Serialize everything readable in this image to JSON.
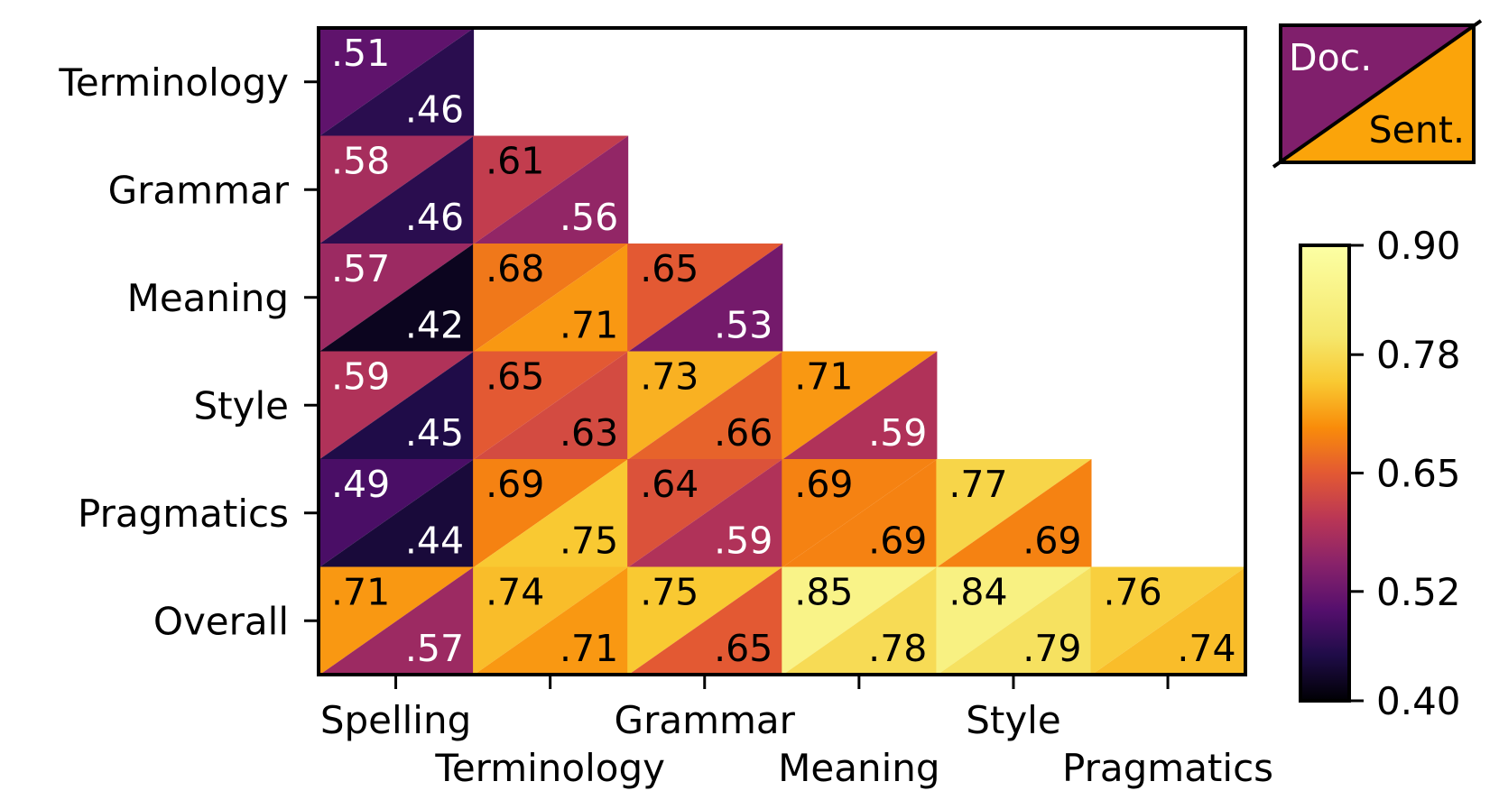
{
  "chart_data": {
    "type": "heatmap",
    "rows": [
      "Terminology",
      "Grammar",
      "Meaning",
      "Style",
      "Pragmatics",
      "Overall"
    ],
    "columns": [
      "Spelling",
      "Terminology",
      "Grammar",
      "Meaning",
      "Style",
      "Pragmatics"
    ],
    "doc_values": [
      [
        0.51,
        null,
        null,
        null,
        null,
        null
      ],
      [
        0.58,
        0.61,
        null,
        null,
        null,
        null
      ],
      [
        0.57,
        0.68,
        0.65,
        null,
        null,
        null
      ],
      [
        0.59,
        0.65,
        0.73,
        0.71,
        null,
        null
      ],
      [
        0.49,
        0.69,
        0.64,
        0.69,
        0.77,
        null
      ],
      [
        0.71,
        0.74,
        0.75,
        0.85,
        0.84,
        0.76
      ]
    ],
    "sent_values": [
      [
        0.46,
        null,
        null,
        null,
        null,
        null
      ],
      [
        0.46,
        0.56,
        null,
        null,
        null,
        null
      ],
      [
        0.42,
        0.71,
        0.53,
        null,
        null,
        null
      ],
      [
        0.45,
        0.63,
        0.66,
        0.59,
        null,
        null
      ],
      [
        0.44,
        0.75,
        0.59,
        0.69,
        0.69,
        null
      ],
      [
        0.57,
        0.71,
        0.65,
        0.78,
        0.79,
        0.74
      ]
    ],
    "doc_labels": [
      [
        ".51"
      ],
      [
        ".58",
        ".61"
      ],
      [
        ".57",
        ".68",
        ".65"
      ],
      [
        ".59",
        ".65",
        ".73",
        ".71"
      ],
      [
        ".49",
        ".69",
        ".64",
        ".69",
        ".77"
      ],
      [
        ".71",
        ".74",
        ".75",
        ".85",
        ".84",
        ".76"
      ]
    ],
    "sent_labels": [
      [
        ".46"
      ],
      [
        ".46",
        ".56"
      ],
      [
        ".42",
        ".71",
        ".53"
      ],
      [
        ".45",
        ".63",
        ".66",
        ".59"
      ],
      [
        ".44",
        ".75",
        ".59",
        ".69",
        ".69"
      ],
      [
        ".57",
        ".71",
        ".65",
        ".78",
        ".79",
        ".74"
      ]
    ],
    "legend": {
      "upper_label": "Doc.",
      "lower_label": "Sent.",
      "upper_color": "#801f6c",
      "lower_color": "#fba40a"
    },
    "colorbar": {
      "colormap": "inferno",
      "range": [
        0.4,
        0.9
      ],
      "tick_values": [
        0.4,
        0.52,
        0.65,
        0.78,
        0.9
      ],
      "tick_labels": [
        "0.40",
        "0.52",
        "0.65",
        "0.78",
        "0.90"
      ]
    }
  }
}
